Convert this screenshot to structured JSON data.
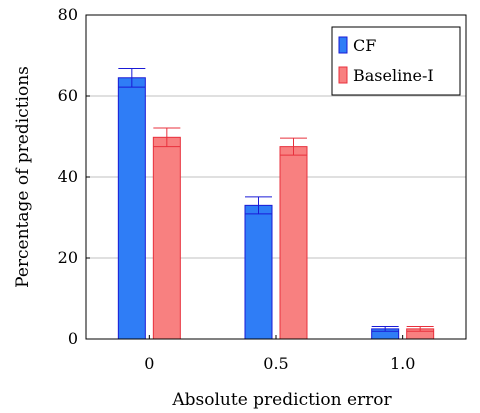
{
  "chart_data": {
    "type": "bar",
    "title": "",
    "xlabel": "Absolute prediction error",
    "ylabel": "Percentage of predictions",
    "categories": [
      "0",
      "0.5",
      "1.0"
    ],
    "ylim": [
      0,
      80
    ],
    "yticks": [
      "0",
      "20",
      "40",
      "60",
      "80"
    ],
    "grid": "horizontal",
    "legend_position": "top-right",
    "series": [
      {
        "name": "CF",
        "values": [
          64.5,
          33.0,
          2.5
        ],
        "errors": [
          2.3,
          2.1,
          0.6
        ],
        "color": "#2f7df6",
        "edge": "#1a1ad6"
      },
      {
        "name": "Baseline-I",
        "values": [
          49.8,
          47.5,
          2.5
        ],
        "errors": [
          2.3,
          2.1,
          0.6
        ],
        "color": "#f88080",
        "edge": "#e8303c"
      }
    ]
  }
}
